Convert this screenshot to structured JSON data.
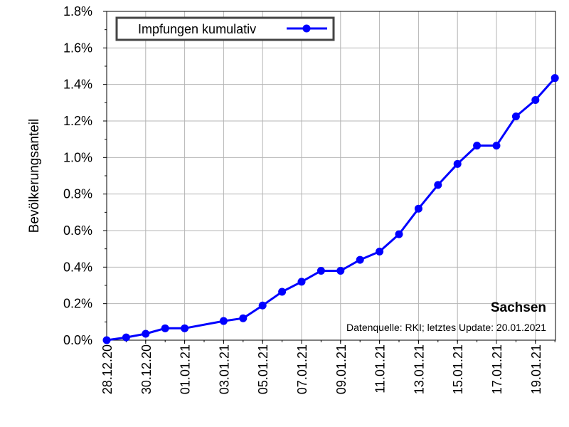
{
  "chart_data": {
    "type": "line",
    "ylabel": "Bevölkerungsanteil",
    "ylim": [
      0.0,
      1.8
    ],
    "yticks": [
      "0.0%",
      "0.2%",
      "0.4%",
      "0.6%",
      "0.8%",
      "1.0%",
      "1.2%",
      "1.4%",
      "1.6%",
      "1.8%"
    ],
    "xticks": [
      "28.12.20",
      "30.12.20",
      "01.01.21",
      "03.01.21",
      "05.01.21",
      "07.01.21",
      "09.01.21",
      "11.01.21",
      "13.01.21",
      "15.01.21",
      "17.01.21",
      "19.01.21"
    ],
    "grid": true,
    "legend_position": "top-left",
    "series": [
      {
        "name": "Impfungen kumulativ",
        "color": "#0000ff",
        "x": [
          "28.12.20",
          "29.12.20",
          "30.12.20",
          "31.12.20",
          "01.01.21",
          "03.01.21",
          "04.01.21",
          "05.01.21",
          "06.01.21",
          "07.01.21",
          "08.01.21",
          "09.01.21",
          "10.01.21",
          "11.01.21",
          "12.01.21",
          "13.01.21",
          "14.01.21",
          "15.01.21",
          "16.01.21",
          "17.01.21",
          "18.01.21",
          "19.01.21",
          "20.01.21"
        ],
        "values": [
          0.0,
          0.015,
          0.035,
          0.065,
          0.065,
          0.105,
          0.12,
          0.19,
          0.265,
          0.32,
          0.38,
          0.38,
          0.44,
          0.485,
          0.58,
          0.72,
          0.85,
          0.965,
          1.065,
          1.065,
          1.225,
          1.315,
          1.435
        ]
      }
    ]
  },
  "annotations": {
    "region": "Sachsen",
    "source": "Datenquelle: RKI; letztes Update: 20.01.2021"
  }
}
